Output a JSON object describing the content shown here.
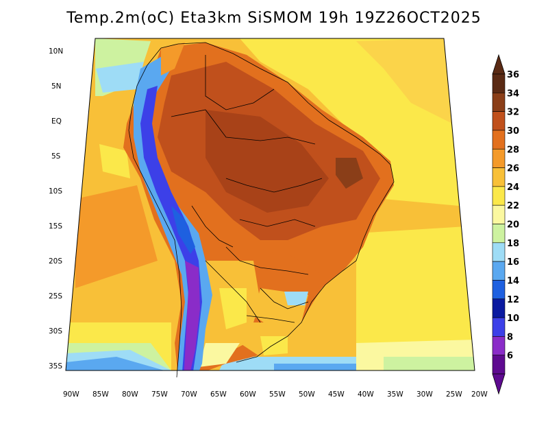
{
  "title": "Temp.2m(oC) Eta3km SiSMOM 19h 19Z26OCT2025",
  "axes": {
    "lat_ticks": [
      "10N",
      "5N",
      "EQ",
      "5S",
      "10S",
      "15S",
      "20S",
      "25S",
      "30S",
      "35S"
    ],
    "lon_ticks": [
      "90W",
      "85W",
      "80W",
      "75W",
      "70W",
      "65W",
      "60W",
      "55W",
      "50W",
      "45W",
      "40W",
      "35W",
      "30W",
      "25W",
      "20W"
    ]
  },
  "colorbar": {
    "labels": [
      "36",
      "34",
      "32",
      "30",
      "28",
      "26",
      "24",
      "22",
      "20",
      "18",
      "16",
      "14",
      "12",
      "10",
      "8",
      "6"
    ],
    "colors": [
      "#5a2a14",
      "#8a3e18",
      "#c0501c",
      "#e2701e",
      "#f49a2a",
      "#f8c038",
      "#fbe84a",
      "#fbf8a0",
      "#cdf2a0",
      "#9edcf6",
      "#5aa8f0",
      "#1e60e0",
      "#0a1aa0",
      "#3c40e8",
      "#8a2cc8",
      "#5e0a90"
    ],
    "top_arrow_color": "#5a2a14",
    "bottom_arrow_color": "#5e0a90"
  }
}
